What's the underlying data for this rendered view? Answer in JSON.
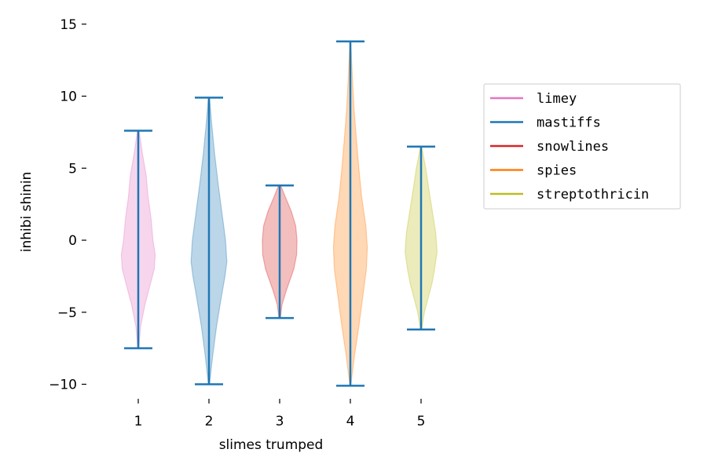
{
  "chart_data": {
    "type": "violin",
    "title": "",
    "xlabel": "slimes trumped",
    "ylabel": "inhibi shinin",
    "ylim": [
      -11,
      15.5
    ],
    "yticks": [
      {
        "value": 15,
        "label": "15"
      },
      {
        "value": 10,
        "label": "10"
      },
      {
        "value": 5,
        "label": "5"
      },
      {
        "value": 0,
        "label": "0"
      },
      {
        "value": -5,
        "label": "−5"
      },
      {
        "value": -10,
        "label": "−10"
      }
    ],
    "xticks": [
      "1",
      "2",
      "3",
      "4",
      "5"
    ],
    "legend_position": "right",
    "grid": false,
    "stat_line_color": "#1f77b4",
    "series": [
      {
        "name": "limey",
        "position": 1,
        "color": "#e377c2",
        "min": -7.5,
        "max": 7.6,
        "density": [
          [
            -7.5,
            0.03
          ],
          [
            -6,
            0.12
          ],
          [
            -4.5,
            0.35
          ],
          [
            -3,
            0.65
          ],
          [
            -2,
            0.85
          ],
          [
            -1,
            0.9
          ],
          [
            0,
            0.78
          ],
          [
            1.5,
            0.68
          ],
          [
            3,
            0.52
          ],
          [
            4.5,
            0.42
          ],
          [
            6,
            0.22
          ],
          [
            7.6,
            0.04
          ]
        ]
      },
      {
        "name": "mastiffs",
        "position": 2,
        "color": "#1f77b4",
        "min": -10.0,
        "max": 9.9,
        "density": [
          [
            -10,
            0.03
          ],
          [
            -8,
            0.2
          ],
          [
            -6,
            0.4
          ],
          [
            -4,
            0.65
          ],
          [
            -2.5,
            0.85
          ],
          [
            -1.5,
            0.95
          ],
          [
            0,
            0.88
          ],
          [
            2,
            0.68
          ],
          [
            4,
            0.48
          ],
          [
            6,
            0.3
          ],
          [
            8,
            0.15
          ],
          [
            9.9,
            0.03
          ]
        ]
      },
      {
        "name": "snowlines",
        "position": 3,
        "color": "#d62728",
        "min": -5.4,
        "max": 3.8,
        "density": [
          [
            -5.4,
            0.04
          ],
          [
            -4.5,
            0.12
          ],
          [
            -3.5,
            0.35
          ],
          [
            -2,
            0.75
          ],
          [
            -1,
            0.9
          ],
          [
            0,
            0.92
          ],
          [
            1,
            0.85
          ],
          [
            2,
            0.62
          ],
          [
            3,
            0.3
          ],
          [
            3.8,
            0.06
          ]
        ]
      },
      {
        "name": "spies",
        "position": 4,
        "color": "#ff7f0e",
        "min": -10.1,
        "max": 13.8,
        "density": [
          [
            -10.1,
            0.02
          ],
          [
            -8,
            0.22
          ],
          [
            -6,
            0.45
          ],
          [
            -4,
            0.65
          ],
          [
            -2,
            0.85
          ],
          [
            -0.5,
            0.9
          ],
          [
            1,
            0.82
          ],
          [
            3,
            0.6
          ],
          [
            5,
            0.45
          ],
          [
            7,
            0.32
          ],
          [
            9,
            0.2
          ],
          [
            11,
            0.12
          ],
          [
            13,
            0.05
          ],
          [
            13.8,
            0.02
          ]
        ]
      },
      {
        "name": "streptothricin",
        "position": 5,
        "color": "#bcbd22",
        "min": -6.2,
        "max": 6.5,
        "density": [
          [
            -6.2,
            0.03
          ],
          [
            -5,
            0.18
          ],
          [
            -4,
            0.38
          ],
          [
            -3,
            0.58
          ],
          [
            -2,
            0.72
          ],
          [
            -0.8,
            0.85
          ],
          [
            0.5,
            0.78
          ],
          [
            2,
            0.6
          ],
          [
            3.5,
            0.42
          ],
          [
            5,
            0.25
          ],
          [
            6.5,
            0.03
          ]
        ]
      }
    ]
  }
}
